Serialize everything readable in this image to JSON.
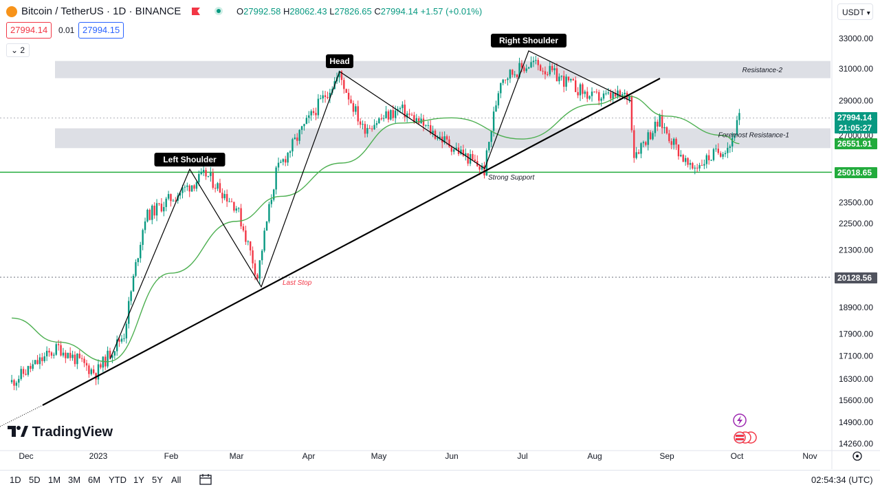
{
  "header": {
    "symbol": "Bitcoin / TetherUS · 1D · BINANCE",
    "open_label": "O",
    "open": "27992.58",
    "high_label": "H",
    "high": "28062.43",
    "low_label": "L",
    "low": "27826.65",
    "close_label": "C",
    "close": "27994.14",
    "change": "+1.57 (+0.01%)",
    "bid": "27994.14",
    "spread": "0.01",
    "ask": "27994.15",
    "indicator_toggle": "2",
    "currency": "USDT"
  },
  "chart_data": {
    "type": "candlestick",
    "symbol": "BTCUSDT",
    "timeframe": "1D",
    "y_ticks": [
      33000,
      31000,
      29000,
      27000,
      25018.65,
      23500,
      22500,
      21300,
      20128.56,
      18900,
      17900,
      17100,
      16300,
      15600,
      14900,
      14260
    ],
    "y_tick_labels": [
      "33000.00",
      "31000.00",
      "29000.00",
      "27000.00",
      "25018.65",
      "23500.00",
      "22500.00",
      "21300.00",
      "20128.56",
      "18900.00",
      "17900.00",
      "17100.00",
      "16300.00",
      "15600.00",
      "14900.00",
      "14260.00"
    ],
    "x_labels": [
      "Dec",
      "2023",
      "Feb",
      "Mar",
      "Apr",
      "May",
      "Jun",
      "Jul",
      "Aug",
      "Sep",
      "Oct",
      "Nov"
    ],
    "price_path": [
      [
        "2022-11-25",
        16200
      ],
      [
        "2022-12-15",
        17400
      ],
      [
        "2022-12-31",
        16500
      ],
      [
        "2023-01-12",
        17900
      ],
      [
        "2023-01-21",
        22800
      ],
      [
        "2023-02-16",
        24900
      ],
      [
        "2023-03-01",
        23300
      ],
      [
        "2023-03-10",
        20150
      ],
      [
        "2023-03-18",
        25000
      ],
      [
        "2023-04-14",
        30600
      ],
      [
        "2023-04-24",
        27400
      ],
      [
        "2023-05-10",
        28500
      ],
      [
        "2023-06-15",
        25100
      ],
      [
        "2023-06-22",
        30400
      ],
      [
        "2023-07-06",
        31400
      ],
      [
        "2023-07-31",
        29200
      ],
      [
        "2023-08-16",
        29300
      ],
      [
        "2023-08-18",
        26000
      ],
      [
        "2023-08-29",
        27800
      ],
      [
        "2023-09-11",
        25150
      ],
      [
        "2023-09-28",
        26500
      ],
      [
        "2023-10-02",
        27994
      ]
    ],
    "moving_average_path": [
      [
        "2022-11-25",
        18500
      ],
      [
        "2022-12-15",
        17600
      ],
      [
        "2023-01-05",
        16900
      ],
      [
        "2023-02-01",
        20300
      ],
      [
        "2023-03-01",
        22600
      ],
      [
        "2023-03-20",
        23800
      ],
      [
        "2023-04-15",
        25500
      ],
      [
        "2023-05-10",
        27700
      ],
      [
        "2023-06-01",
        28000
      ],
      [
        "2023-07-01",
        26800
      ],
      [
        "2023-08-01",
        28800
      ],
      [
        "2023-08-15",
        29300
      ],
      [
        "2023-09-01",
        28100
      ],
      [
        "2023-09-25",
        27000
      ],
      [
        "2023-10-02",
        26550
      ]
    ],
    "zones": [
      {
        "label": "Resistance-2",
        "from": 30400,
        "to": 31500
      },
      {
        "label": "Foremost Resistance-1",
        "from": 26300,
        "to": 27400
      }
    ],
    "horizontal_lines": [
      {
        "price": 25018.65,
        "color": "#22ab3c"
      },
      {
        "price": 20128.56,
        "color": "#6a6d78",
        "style": "dotted"
      }
    ],
    "pattern": [
      {
        "label": "Left Shoulder"
      },
      {
        "label": "Head"
      },
      {
        "label": "Right Shoulder"
      }
    ],
    "annotations": [
      "Strong Support",
      "Last Stop"
    ],
    "price_tags": [
      {
        "text": "27994.14",
        "price": 27994.14,
        "color": "#089981"
      },
      {
        "text": "21:05:27",
        "price": 27994.14,
        "color": "#089981"
      },
      {
        "text": "26551.91",
        "price": 26551.91,
        "color": "#22ab3c"
      },
      {
        "text": "25018.65",
        "price": 25018.65,
        "color": "#22ab3c"
      },
      {
        "text": "20128.56",
        "price": 20128.56,
        "color": "#50535e"
      }
    ],
    "colors": {
      "up": "#089981",
      "down": "#f23645",
      "ma": "#4caf50",
      "zone": "#d1d4dc"
    }
  },
  "footer": {
    "brand": "TradingView",
    "timeframes": [
      "1D",
      "5D",
      "1M",
      "3M",
      "6M",
      "YTD",
      "1Y",
      "5Y",
      "All"
    ],
    "clock": "02:54:34 (UTC)"
  }
}
